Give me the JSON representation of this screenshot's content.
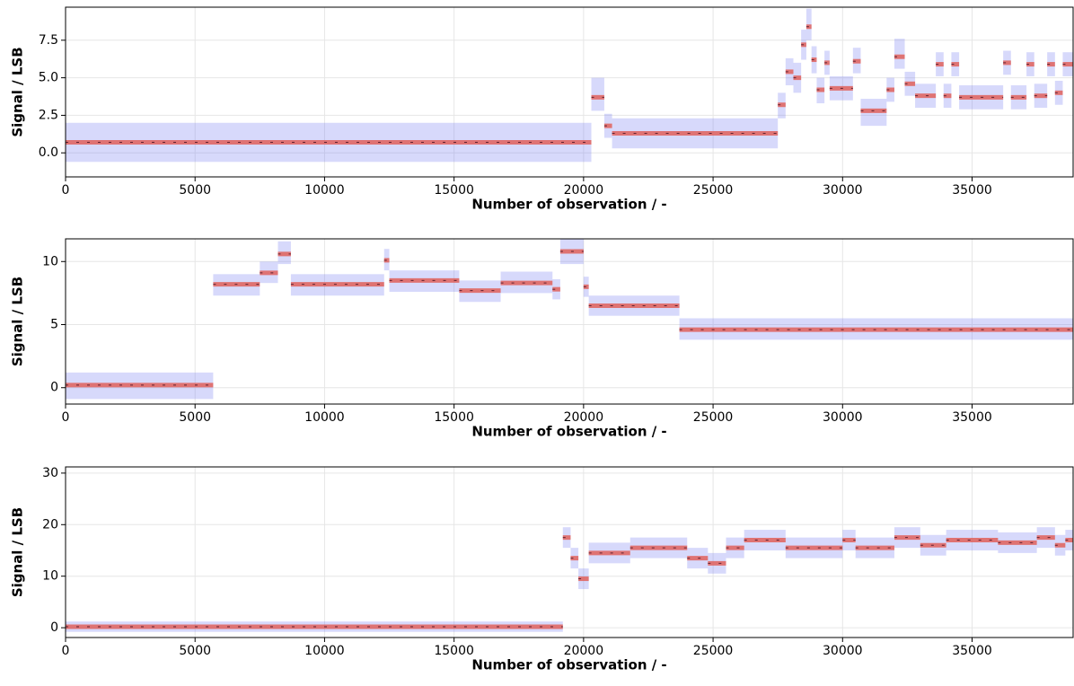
{
  "chart_data": [
    {
      "type": "step",
      "xlabel": "Number of observation / -",
      "ylabel": "Signal / LSB",
      "xlim": [
        0,
        38900
      ],
      "ylim": [
        -1.6,
        9.7
      ],
      "xticks": [
        0,
        5000,
        10000,
        15000,
        20000,
        25000,
        30000,
        35000
      ],
      "yticks": [
        {
          "value": 0,
          "label": "0.0"
        },
        2.5,
        {
          "value": 5,
          "label": "5.0"
        },
        7.5
      ],
      "grid": true,
      "color": "#e0605a",
      "band_color": "#6f78f0",
      "x": [
        0,
        20300,
        20800,
        21100,
        27500,
        27800,
        28100,
        28400,
        28600,
        28800,
        29000,
        29300,
        29500,
        30400,
        30700,
        31700,
        32000,
        32400,
        32800,
        33600,
        33900,
        34200,
        34500,
        36200,
        36500,
        37100,
        37400,
        37900,
        38200,
        38500
      ],
      "values": [
        0.7,
        3.7,
        1.8,
        1.3,
        3.2,
        5.4,
        5.0,
        7.2,
        8.4,
        6.2,
        4.2,
        6.0,
        4.3,
        6.1,
        2.8,
        4.2,
        6.4,
        4.6,
        3.8,
        5.9,
        3.8,
        5.9,
        3.7,
        6.0,
        3.7,
        5.9,
        3.8,
        5.9,
        4.0,
        5.9
      ],
      "lower": [
        -0.6,
        2.8,
        1.0,
        0.3,
        2.3,
        4.5,
        4.0,
        6.2,
        7.5,
        5.3,
        3.3,
        5.2,
        3.5,
        5.3,
        1.8,
        3.4,
        5.6,
        3.8,
        3.0,
        5.1,
        3.0,
        5.1,
        2.9,
        5.2,
        2.9,
        5.1,
        3.0,
        5.1,
        3.2,
        5.1
      ],
      "upper": [
        2.0,
        5.0,
        2.6,
        2.3,
        4.0,
        6.3,
        6.0,
        8.2,
        9.6,
        7.1,
        5.0,
        6.8,
        5.1,
        7.0,
        3.6,
        5.0,
        7.6,
        5.4,
        4.6,
        6.7,
        4.6,
        6.7,
        4.5,
        6.8,
        4.5,
        6.7,
        4.6,
        6.7,
        4.8,
        6.7
      ]
    },
    {
      "type": "step",
      "xlabel": "Number of observation / -",
      "ylabel": "Signal / LSB",
      "xlim": [
        0,
        38900
      ],
      "ylim": [
        -1.3,
        11.8
      ],
      "xticks": [
        0,
        5000,
        10000,
        15000,
        20000,
        25000,
        30000,
        35000
      ],
      "yticks": [
        0,
        5,
        10
      ],
      "grid": true,
      "color": "#e0605a",
      "band_color": "#6f78f0",
      "x": [
        0,
        5700,
        7500,
        8200,
        8700,
        12300,
        12500,
        15200,
        16800,
        18800,
        19100,
        20000,
        20200,
        23700
      ],
      "values": [
        0.2,
        8.2,
        9.1,
        10.6,
        8.2,
        10.1,
        8.5,
        7.7,
        8.3,
        7.8,
        10.8,
        8.0,
        6.5,
        4.6
      ],
      "lower": [
        -0.9,
        7.3,
        8.3,
        9.8,
        7.3,
        9.3,
        7.6,
        6.8,
        7.5,
        7.0,
        9.8,
        7.2,
        5.7,
        3.8
      ],
      "upper": [
        1.2,
        9.0,
        10.0,
        11.6,
        9.0,
        11.0,
        9.3,
        8.5,
        9.2,
        8.6,
        11.8,
        8.8,
        7.3,
        5.5
      ]
    },
    {
      "type": "step",
      "xlabel": "Number of observation / -",
      "ylabel": "Signal / LSB",
      "xlim": [
        0,
        38900
      ],
      "ylim": [
        -1.9,
        31.2
      ],
      "xticks": [
        0,
        5000,
        10000,
        15000,
        20000,
        25000,
        30000,
        35000
      ],
      "yticks": [
        0,
        10,
        20,
        30
      ],
      "grid": true,
      "color": "#e0605a",
      "band_color": "#6f78f0",
      "x": [
        0,
        19200,
        19500,
        19800,
        20200,
        21800,
        24000,
        24800,
        25500,
        26200,
        27800,
        30000,
        30500,
        32000,
        33000,
        34000,
        36000,
        37500,
        38200,
        38600
      ],
      "values": [
        0.2,
        17.5,
        13.5,
        9.5,
        14.5,
        15.5,
        13.5,
        12.5,
        15.5,
        17.0,
        15.5,
        17.0,
        15.5,
        17.5,
        16.0,
        17.0,
        16.5,
        17.5,
        16.0,
        17.0
      ],
      "lower": [
        -0.8,
        15.5,
        11.5,
        7.5,
        12.5,
        13.5,
        11.5,
        10.5,
        13.5,
        15.0,
        13.5,
        15.0,
        13.5,
        15.5,
        14.0,
        15.0,
        14.5,
        15.5,
        14.0,
        15.0
      ],
      "upper": [
        1.2,
        19.5,
        15.5,
        11.5,
        16.5,
        17.5,
        15.5,
        14.5,
        17.5,
        19.0,
        17.5,
        19.0,
        17.5,
        19.5,
        18.0,
        19.0,
        18.5,
        19.5,
        18.0,
        19.0
      ]
    }
  ]
}
